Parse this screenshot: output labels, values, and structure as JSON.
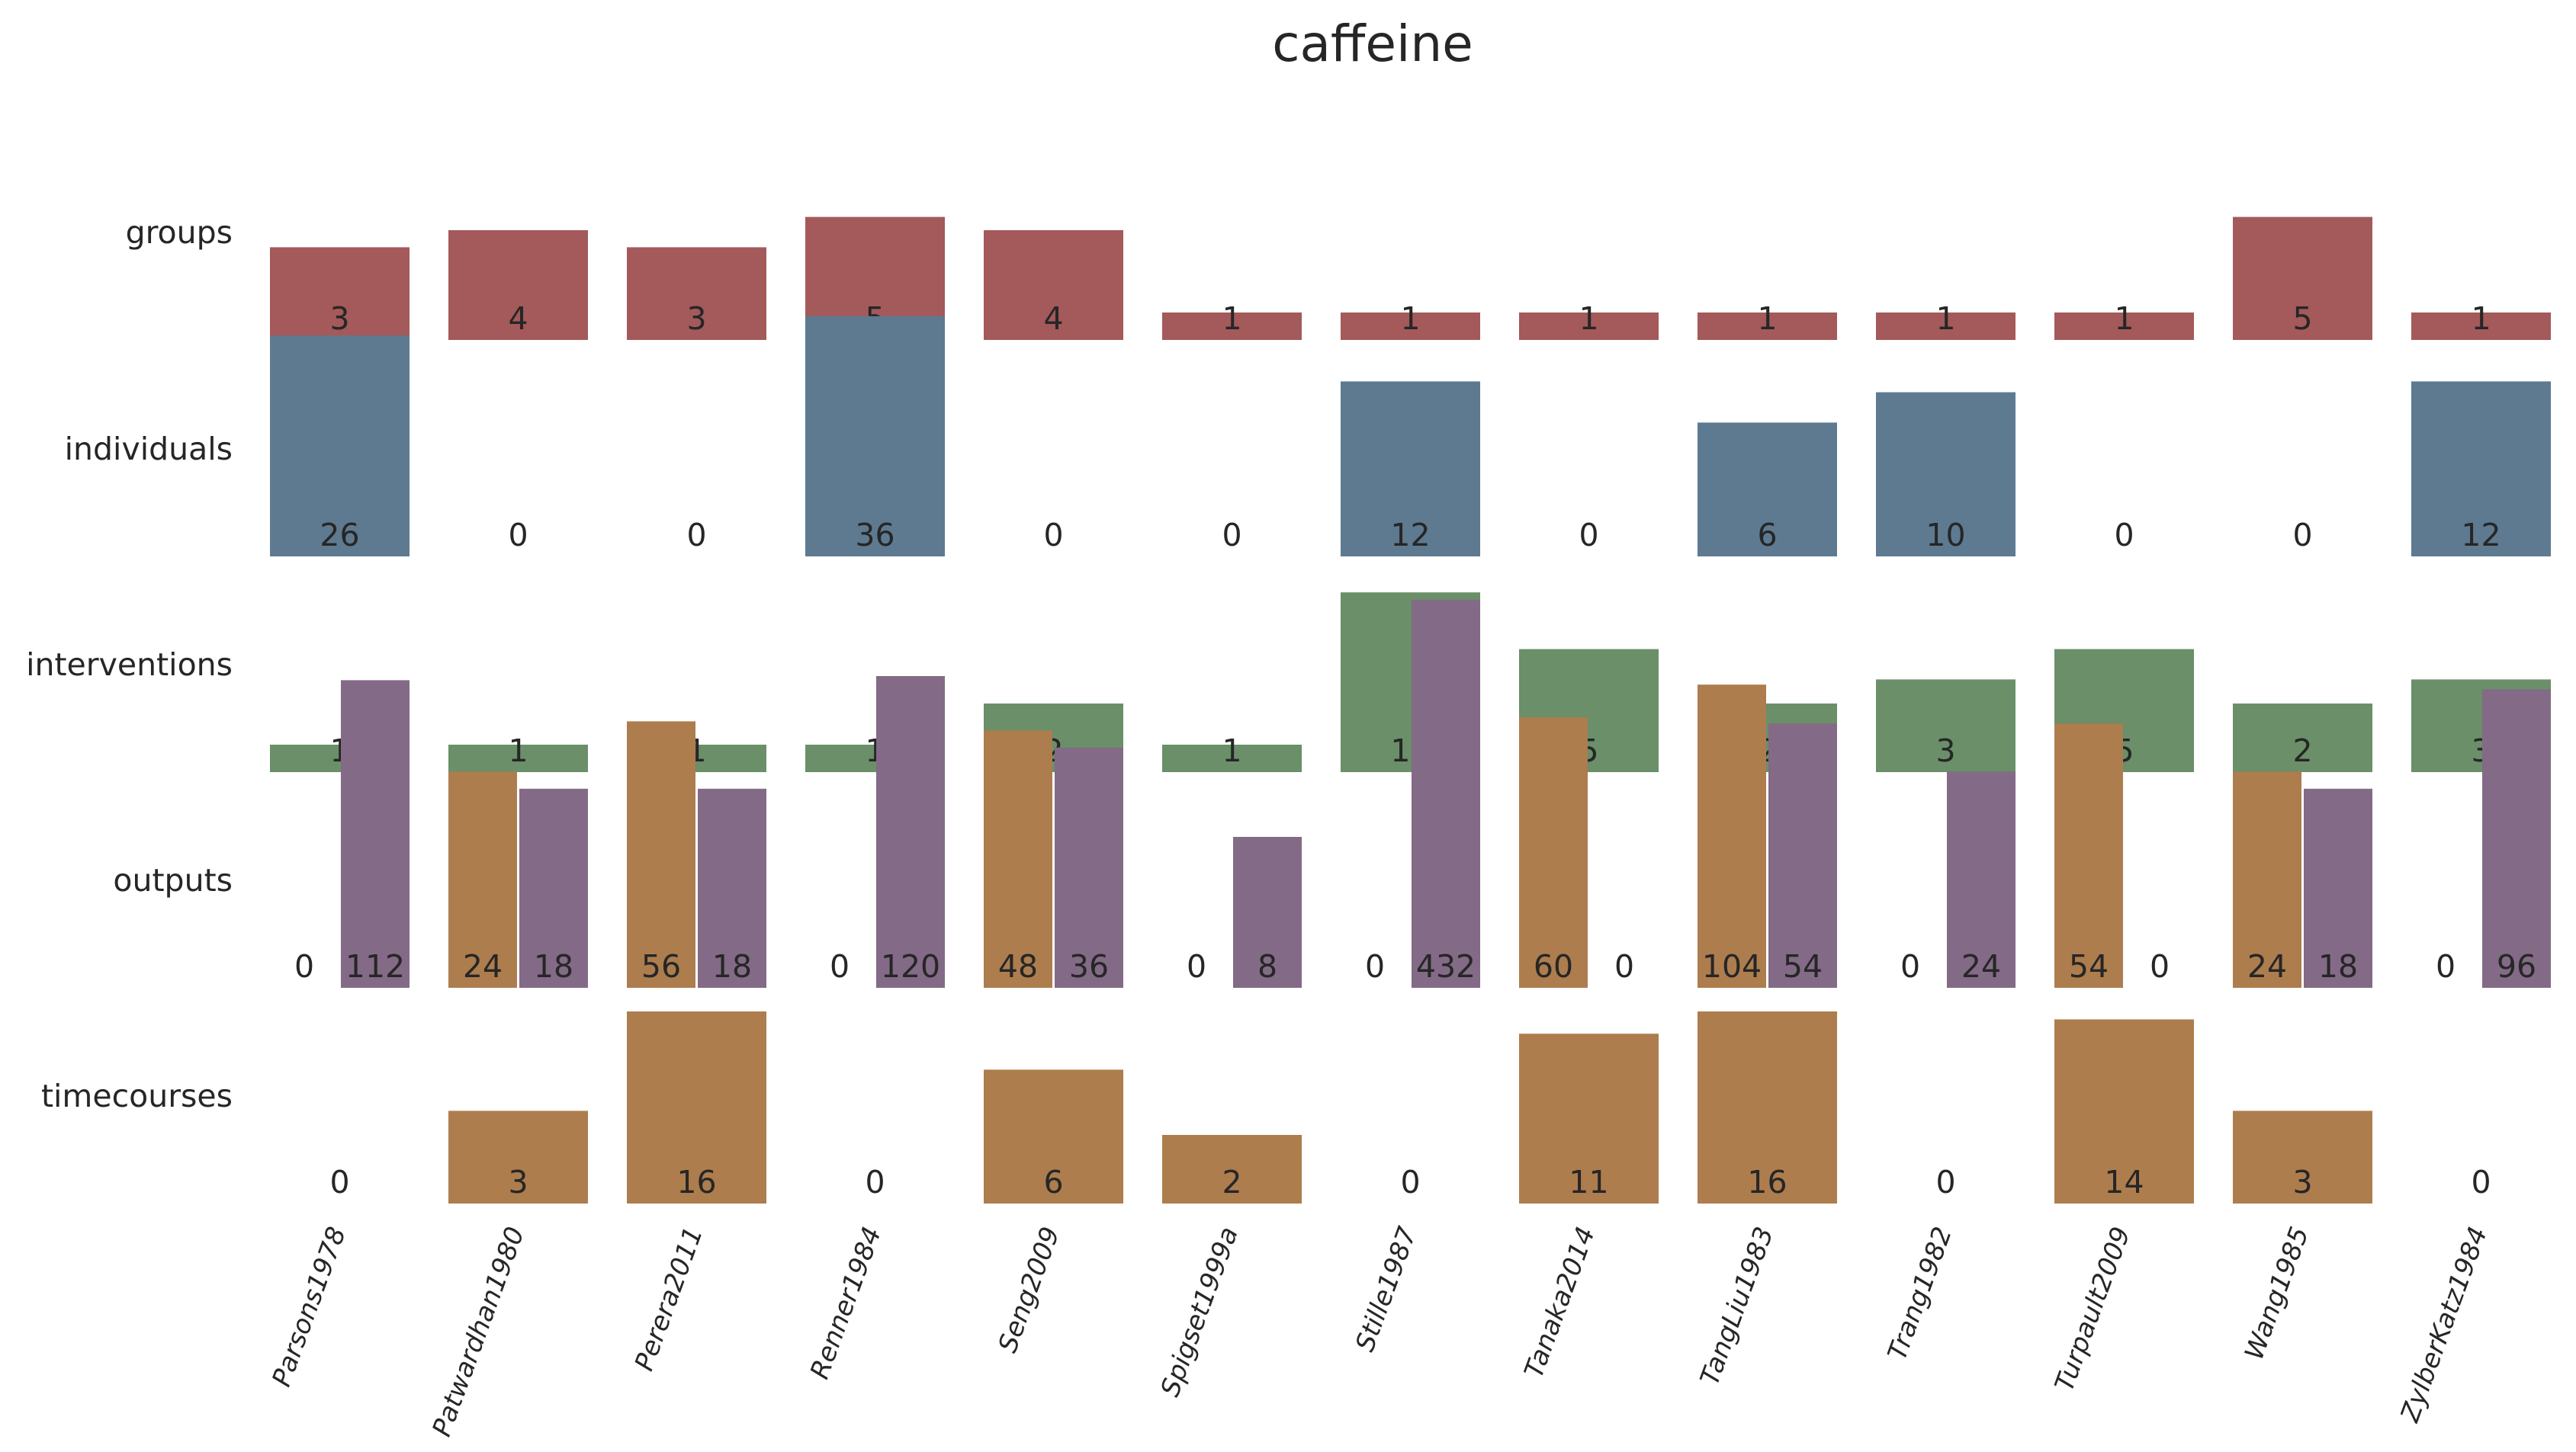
{
  "chart_data": {
    "type": "bar",
    "title": "caffeine",
    "categories": [
      "Parsons1978",
      "Patwardhan1980",
      "Perera2011",
      "Renner1984",
      "Seng2009",
      "Spigset1999a",
      "Stille1987",
      "Tanaka2014",
      "TangLiu1983",
      "Trang1982",
      "Turpault2009",
      "Wang1985",
      "ZylberKatz1984"
    ],
    "rows": [
      {
        "label": "groups",
        "series": [
          {
            "values": [
              3,
              4,
              3,
              5,
              4,
              1,
              1,
              1,
              1,
              1,
              1,
              5,
              1
            ],
            "color": "#a4595a"
          }
        ]
      },
      {
        "label": "individuals",
        "series": [
          {
            "values": [
              26,
              0,
              0,
              36,
              0,
              0,
              12,
              0,
              6,
              10,
              0,
              0,
              12
            ],
            "color": "#5e7a91"
          }
        ]
      },
      {
        "label": "interventions",
        "series": [
          {
            "values": [
              1,
              1,
              1,
              1,
              2,
              1,
              13,
              5,
              2,
              3,
              5,
              2,
              3
            ],
            "color": "#6a8f69"
          }
        ]
      },
      {
        "label": "outputs",
        "series": [
          {
            "values": [
              0,
              24,
              56,
              0,
              48,
              0,
              0,
              60,
              104,
              0,
              54,
              24,
              0
            ],
            "color": "#ad7d4e"
          },
          {
            "values": [
              112,
              18,
              18,
              120,
              36,
              8,
              432,
              0,
              54,
              24,
              0,
              18,
              96
            ],
            "color": "#836a86"
          }
        ]
      },
      {
        "label": "timecourses",
        "series": [
          {
            "values": [
              0,
              3,
              16,
              0,
              6,
              2,
              0,
              11,
              16,
              0,
              14,
              3,
              0
            ],
            "color": "#ad7d4e"
          }
        ]
      }
    ],
    "scale": "log",
    "grid": false,
    "legend": "none"
  }
}
